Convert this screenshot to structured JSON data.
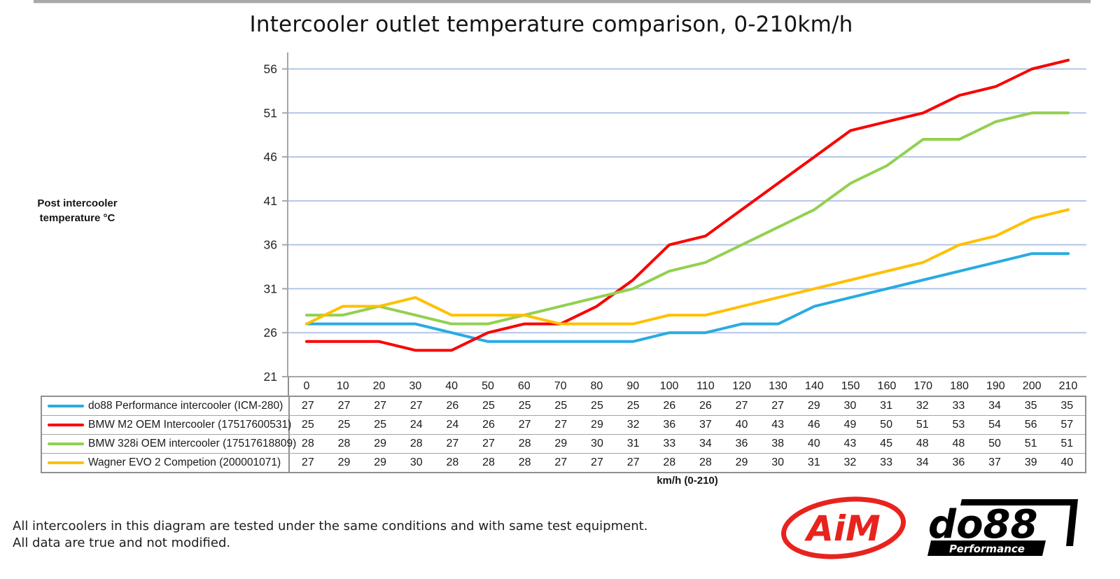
{
  "page": {
    "title": "Intercooler outlet temperature comparison, 0-210km/h",
    "y_axis_label_line1": "Post intercooler",
    "y_axis_label_line2": "temperature °C",
    "x_axis_label": "km/h (0-210)",
    "footnote_line1": "All intercoolers in this diagram are tested under the same conditions and with same test equipment.",
    "footnote_line2": "All data are true and not modified."
  },
  "logos": {
    "aim_text": "AiM",
    "do88_text": "do88",
    "do88_sub": "Performance"
  },
  "colors": {
    "gridline": "#b3c6e7",
    "axis": "#a6a6a6",
    "table_border": "#8f8f8f",
    "logo_red": "#e8231e",
    "logo_black": "#000000"
  },
  "chart_data": {
    "type": "line",
    "title": "Intercooler outlet temperature comparison, 0-210km/h",
    "xlabel": "km/h (0-210)",
    "ylabel": "Post intercooler temperature °C",
    "x": [
      0,
      10,
      20,
      30,
      40,
      50,
      60,
      70,
      80,
      90,
      100,
      110,
      120,
      130,
      140,
      150,
      160,
      170,
      180,
      190,
      200,
      210
    ],
    "yticks": [
      21,
      26,
      31,
      36,
      41,
      46,
      51,
      56
    ],
    "ylim": [
      21,
      58
    ],
    "grid": "horizontal",
    "legend_position": "table-left",
    "series": [
      {
        "name": "do88 Performance intercooler (ICM-280)",
        "color": "#29abe2",
        "values": [
          27,
          27,
          27,
          27,
          26,
          25,
          25,
          25,
          25,
          25,
          26,
          26,
          27,
          27,
          29,
          30,
          31,
          32,
          33,
          34,
          35,
          35
        ]
      },
      {
        "name": "BMW M2 OEM Intercooler (17517600531)",
        "color": "#fb0000",
        "values": [
          25,
          25,
          25,
          24,
          24,
          26,
          27,
          27,
          29,
          32,
          36,
          37,
          40,
          43,
          46,
          49,
          50,
          51,
          53,
          54,
          56,
          57
        ]
      },
      {
        "name": "BMW 328i OEM intercooler (17517618809)",
        "color": "#92d050",
        "values": [
          28,
          28,
          29,
          28,
          27,
          27,
          28,
          29,
          30,
          31,
          33,
          34,
          36,
          38,
          40,
          43,
          45,
          48,
          48,
          50,
          51,
          51
        ]
      },
      {
        "name": "Wagner EVO 2 Competion (200001071)",
        "color": "#ffc000",
        "values": [
          27,
          29,
          29,
          30,
          28,
          28,
          28,
          27,
          27,
          27,
          28,
          28,
          29,
          30,
          31,
          32,
          33,
          34,
          36,
          37,
          39,
          40
        ]
      }
    ]
  }
}
